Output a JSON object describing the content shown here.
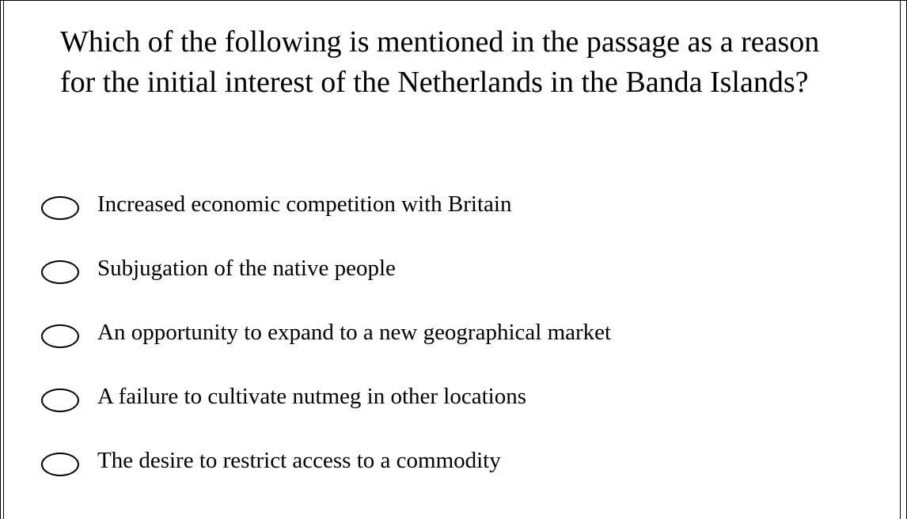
{
  "question": {
    "text": "Which of the following is mentioned in the passage as a reason for the initial interest of the Netherlands in the Banda Islands?"
  },
  "options": [
    {
      "label": "Increased economic competition with Britain"
    },
    {
      "label": "Subjugation of the native people"
    },
    {
      "label": "An opportunity to expand to a new geographical market"
    },
    {
      "label": "A failure to cultivate nutmeg in other locations"
    },
    {
      "label": "The desire to restrict access to a commodity"
    }
  ]
}
